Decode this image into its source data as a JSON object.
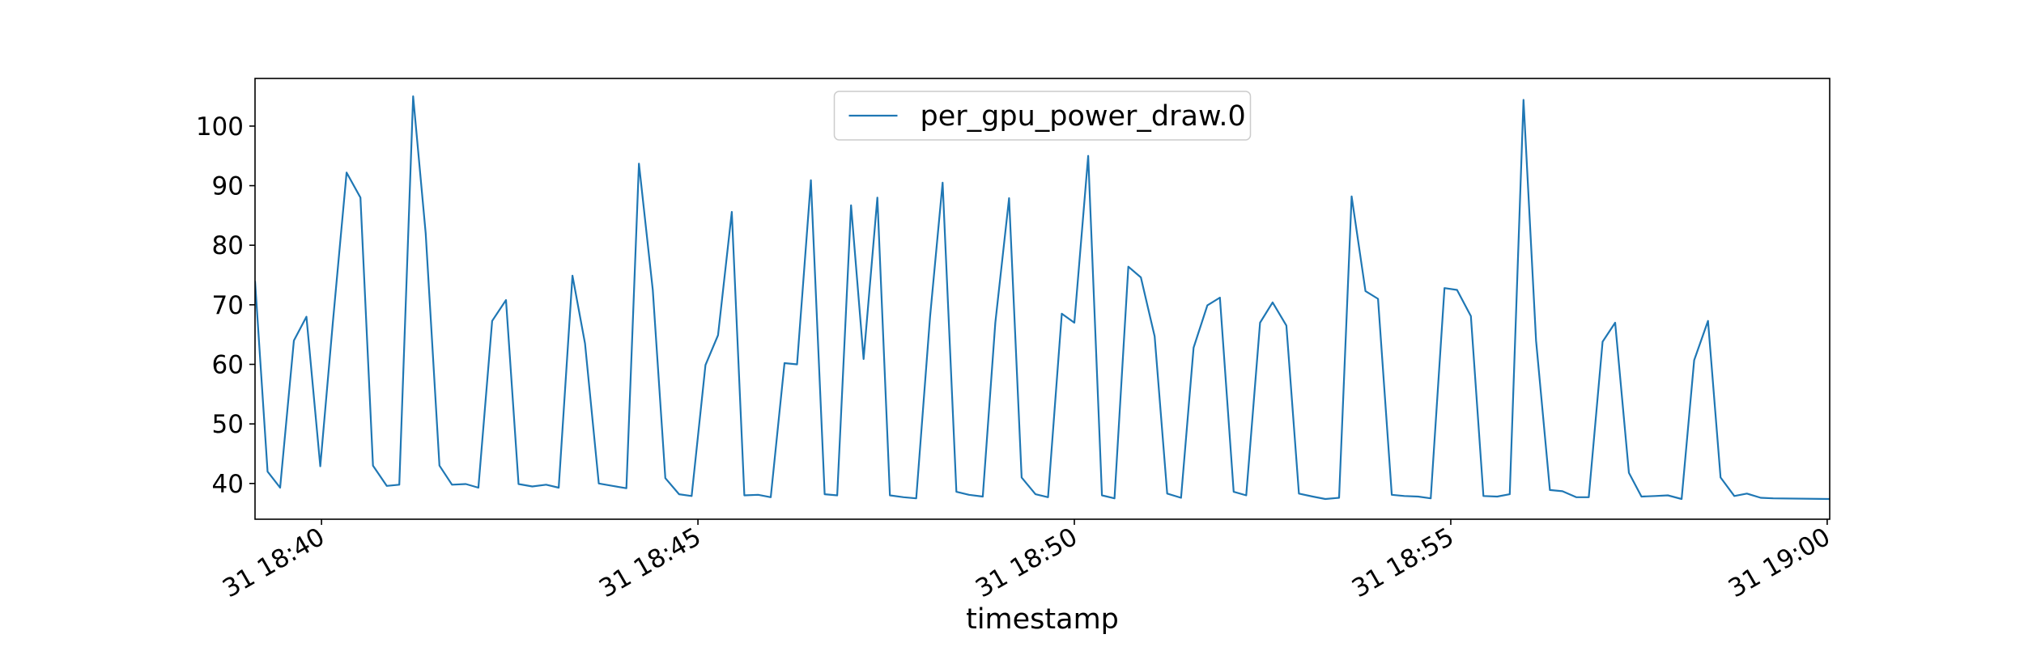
{
  "chart_data": {
    "type": "line",
    "title": "",
    "xlabel": "timestamp",
    "ylabel": "",
    "ylim": [
      34,
      108
    ],
    "xlim": [
      "2023-01-31 18:39:07",
      "2023-01-31 19:00:02"
    ],
    "y_ticks": [
      40,
      50,
      60,
      70,
      80,
      90,
      100
    ],
    "x_ticks": [
      {
        "value": "2023-01-31 18:40:00",
        "label": "31 18:40"
      },
      {
        "value": "2023-01-31 18:45:00",
        "label": "31 18:45"
      },
      {
        "value": "2023-01-31 18:50:00",
        "label": "31 18:50"
      },
      {
        "value": "2023-01-31 18:55:00",
        "label": "31 18:55"
      },
      {
        "value": "2023-01-31 19:00:00",
        "label": "31 19:00"
      }
    ],
    "grid": false,
    "legend": "upper center",
    "series": [
      {
        "name": "per_gpu_power_draw.0",
        "color": "#1f77b4",
        "points": [
          [
            "2023-01-31 18:39:07",
            74.0
          ],
          [
            "2023-01-31 18:39:17",
            42.0
          ],
          [
            "2023-01-31 18:39:27",
            39.3
          ],
          [
            "2023-01-31 18:39:38",
            64.0
          ],
          [
            "2023-01-31 18:39:48",
            68.0
          ],
          [
            "2023-01-31 18:39:59",
            42.9
          ],
          [
            "2023-01-31 18:40:09",
            67.0
          ],
          [
            "2023-01-31 18:40:20",
            92.2
          ],
          [
            "2023-01-31 18:40:31",
            88.0
          ],
          [
            "2023-01-31 18:40:41",
            43.0
          ],
          [
            "2023-01-31 18:40:52",
            39.6
          ],
          [
            "2023-01-31 18:41:02",
            39.8
          ],
          [
            "2023-01-31 18:41:13",
            105.0
          ],
          [
            "2023-01-31 18:41:23",
            82.0
          ],
          [
            "2023-01-31 18:41:34",
            43.0
          ],
          [
            "2023-01-31 18:41:44",
            39.8
          ],
          [
            "2023-01-31 18:41:55",
            39.9
          ],
          [
            "2023-01-31 18:42:05",
            39.3
          ],
          [
            "2023-01-31 18:42:16",
            67.3
          ],
          [
            "2023-01-31 18:42:27",
            70.8
          ],
          [
            "2023-01-31 18:42:37",
            39.9
          ],
          [
            "2023-01-31 18:42:48",
            39.5
          ],
          [
            "2023-01-31 18:42:59",
            39.8
          ],
          [
            "2023-01-31 18:43:09",
            39.3
          ],
          [
            "2023-01-31 18:43:20",
            74.9
          ],
          [
            "2023-01-31 18:43:30",
            63.5
          ],
          [
            "2023-01-31 18:43:41",
            40.0
          ],
          [
            "2023-01-31 18:43:52",
            39.6
          ],
          [
            "2023-01-31 18:44:03",
            39.2
          ],
          [
            "2023-01-31 18:44:13",
            93.7
          ],
          [
            "2023-01-31 18:44:24",
            72.5
          ],
          [
            "2023-01-31 18:44:34",
            40.9
          ],
          [
            "2023-01-31 18:44:45",
            38.2
          ],
          [
            "2023-01-31 18:44:55",
            37.9
          ],
          [
            "2023-01-31 18:45:06",
            59.9
          ],
          [
            "2023-01-31 18:45:16",
            64.9
          ],
          [
            "2023-01-31 18:45:27",
            85.6
          ],
          [
            "2023-01-31 18:45:37",
            38.0
          ],
          [
            "2023-01-31 18:45:48",
            38.1
          ],
          [
            "2023-01-31 18:45:58",
            37.7
          ],
          [
            "2023-01-31 18:46:09",
            60.2
          ],
          [
            "2023-01-31 18:46:19",
            60.0
          ],
          [
            "2023-01-31 18:46:30",
            90.9
          ],
          [
            "2023-01-31 18:46:41",
            38.2
          ],
          [
            "2023-01-31 18:46:51",
            38.0
          ],
          [
            "2023-01-31 18:47:02",
            86.7
          ],
          [
            "2023-01-31 18:47:12",
            60.9
          ],
          [
            "2023-01-31 18:47:23",
            88.0
          ],
          [
            "2023-01-31 18:47:33",
            38.0
          ],
          [
            "2023-01-31 18:47:44",
            37.7
          ],
          [
            "2023-01-31 18:47:54",
            37.5
          ],
          [
            "2023-01-31 18:48:05",
            68.0
          ],
          [
            "2023-01-31 18:48:15",
            90.5
          ],
          [
            "2023-01-31 18:48:26",
            38.6
          ],
          [
            "2023-01-31 18:48:36",
            38.1
          ],
          [
            "2023-01-31 18:48:47",
            37.8
          ],
          [
            "2023-01-31 18:48:57",
            67.0
          ],
          [
            "2023-01-31 18:49:08",
            87.9
          ],
          [
            "2023-01-31 18:49:18",
            41.0
          ],
          [
            "2023-01-31 18:49:29",
            38.2
          ],
          [
            "2023-01-31 18:49:39",
            37.7
          ],
          [
            "2023-01-31 18:49:50",
            68.5
          ],
          [
            "2023-01-31 18:50:00",
            67.0
          ],
          [
            "2023-01-31 18:50:11",
            95.0
          ],
          [
            "2023-01-31 18:50:22",
            38.0
          ],
          [
            "2023-01-31 18:50:32",
            37.5
          ],
          [
            "2023-01-31 18:50:43",
            76.4
          ],
          [
            "2023-01-31 18:50:53",
            74.6
          ],
          [
            "2023-01-31 18:51:04",
            64.7
          ],
          [
            "2023-01-31 18:51:14",
            38.3
          ],
          [
            "2023-01-31 18:51:25",
            37.6
          ],
          [
            "2023-01-31 18:51:35",
            62.8
          ],
          [
            "2023-01-31 18:51:46",
            69.9
          ],
          [
            "2023-01-31 18:51:56",
            71.2
          ],
          [
            "2023-01-31 18:52:07",
            38.6
          ],
          [
            "2023-01-31 18:52:17",
            38.0
          ],
          [
            "2023-01-31 18:52:28",
            67.0
          ],
          [
            "2023-01-31 18:52:38",
            70.4
          ],
          [
            "2023-01-31 18:52:49",
            66.5
          ],
          [
            "2023-01-31 18:52:59",
            38.3
          ],
          [
            "2023-01-31 18:53:10",
            37.8
          ],
          [
            "2023-01-31 18:53:20",
            37.4
          ],
          [
            "2023-01-31 18:53:31",
            37.6
          ],
          [
            "2023-01-31 18:53:41",
            88.2
          ],
          [
            "2023-01-31 18:53:52",
            72.3
          ],
          [
            "2023-01-31 18:54:02",
            71.0
          ],
          [
            "2023-01-31 18:54:13",
            38.1
          ],
          [
            "2023-01-31 18:54:23",
            37.9
          ],
          [
            "2023-01-31 18:54:34",
            37.8
          ],
          [
            "2023-01-31 18:54:44",
            37.5
          ],
          [
            "2023-01-31 18:54:55",
            72.8
          ],
          [
            "2023-01-31 18:55:05",
            72.5
          ],
          [
            "2023-01-31 18:55:16",
            68.1
          ],
          [
            "2023-01-31 18:55:26",
            37.9
          ],
          [
            "2023-01-31 18:55:37",
            37.8
          ],
          [
            "2023-01-31 18:55:47",
            38.2
          ],
          [
            "2023-01-31 18:55:58",
            104.4
          ],
          [
            "2023-01-31 18:56:08",
            64.0
          ],
          [
            "2023-01-31 18:56:19",
            38.9
          ],
          [
            "2023-01-31 18:56:29",
            38.7
          ],
          [
            "2023-01-31 18:56:40",
            37.7
          ],
          [
            "2023-01-31 18:56:50",
            37.7
          ],
          [
            "2023-01-31 18:57:01",
            63.8
          ],
          [
            "2023-01-31 18:57:11",
            67.0
          ],
          [
            "2023-01-31 18:57:22",
            41.8
          ],
          [
            "2023-01-31 18:57:32",
            37.8
          ],
          [
            "2023-01-31 18:57:43",
            37.9
          ],
          [
            "2023-01-31 18:57:53",
            38.0
          ],
          [
            "2023-01-31 18:58:04",
            37.4
          ],
          [
            "2023-01-31 18:58:14",
            60.7
          ],
          [
            "2023-01-31 18:58:25",
            67.3
          ],
          [
            "2023-01-31 18:58:35",
            41.0
          ],
          [
            "2023-01-31 18:58:46",
            37.9
          ],
          [
            "2023-01-31 18:58:56",
            38.3
          ],
          [
            "2023-01-31 18:59:07",
            37.6
          ],
          [
            "2023-01-31 18:59:17",
            37.5
          ],
          [
            "2023-01-31 19:00:02",
            37.4
          ]
        ]
      }
    ]
  }
}
